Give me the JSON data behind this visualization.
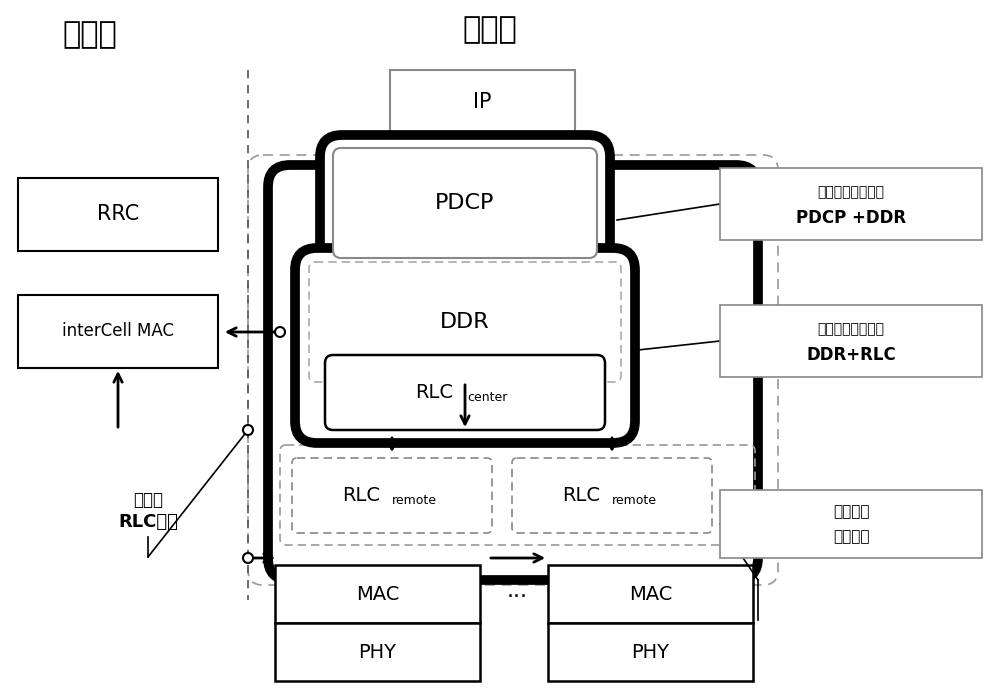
{
  "bg_color": "#ffffff",
  "title_control": "控制面",
  "title_user": "用户面",
  "label_ip": "IP",
  "label_rrc": "RRC",
  "label_intercell": "interCell MAC",
  "label_pdcp": "PDCP",
  "label_ddr": "DDR",
  "label_rlc_center": "RLC",
  "label_rlc_center_sub": "center",
  "label_rlc_remote1": "RLC",
  "label_rlc_remote1_sub": "remote",
  "label_rlc_remote2": "RLC",
  "label_rlc_remote2_sub": "remote",
  "label_mac1": "MAC",
  "label_mac2": "MAC",
  "label_phy1": "PHY",
  "label_phy2": "PHY",
  "label_dots": "...",
  "ann1_line1": "理想的前传组件：",
  "ann1_line2": "PDCP +DDR",
  "ann2_line1": "理想的前传组件：",
  "ann2_line2": "DDR+RLC",
  "ann3_line1": "非理想的",
  "ann3_line2": "前传组件",
  "ann4_line1": "互斥的",
  "ann4_line2": "RLC实体"
}
